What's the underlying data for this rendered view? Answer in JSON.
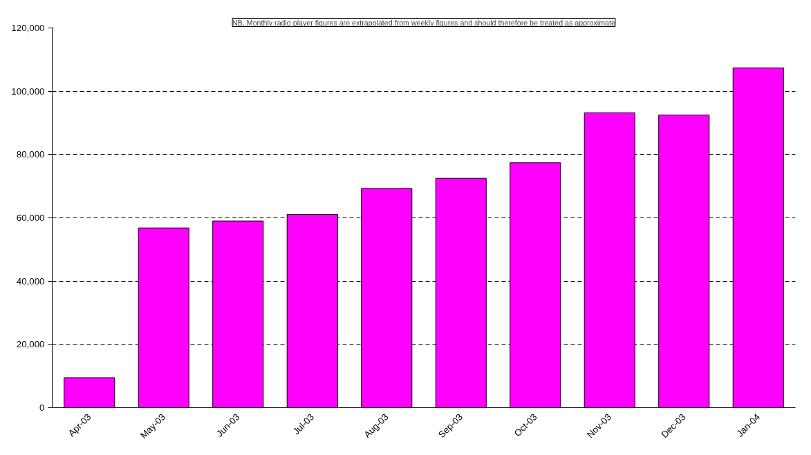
{
  "chart_data": {
    "type": "bar",
    "annotations": [
      "NB. Monthly radio player figures are extrapolated from weekly figures and should therefore be treated as approximate"
    ],
    "categories": [
      "Apr-03",
      "May-03",
      "Jun-03",
      "Jul-03",
      "Aug-03",
      "Sep-03",
      "Oct-03",
      "Nov-03",
      "Dec-03",
      "Jan-04"
    ],
    "values": [
      9500,
      56800,
      59000,
      61100,
      69300,
      72500,
      77400,
      93200,
      92500,
      107400
    ],
    "color": "#ff00ff",
    "ylim": [
      0,
      120000
    ],
    "yticks": [
      0,
      {
        "value": 20000,
        "label": "20,000"
      },
      {
        "value": 40000,
        "label": "40,000"
      },
      {
        "value": 60000,
        "label": "60,000"
      },
      {
        "value": 80000,
        "label": "80,000"
      },
      {
        "value": 100000,
        "label": "100,000"
      },
      {
        "value": 120000,
        "label": "120,000"
      }
    ],
    "grid": "y"
  }
}
